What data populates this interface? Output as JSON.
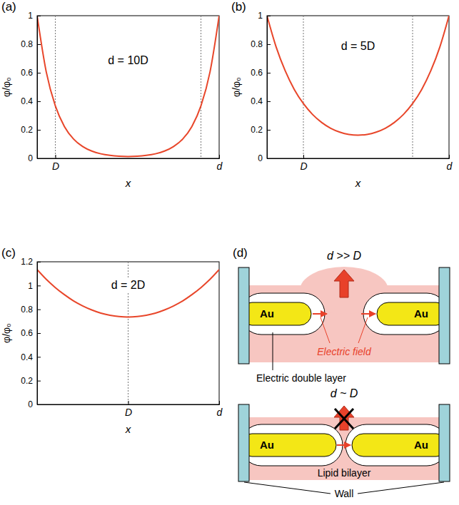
{
  "chart_data": [
    {
      "type": "line",
      "panel_label": "(a)",
      "annotation": "d = 10D",
      "x_label": "x",
      "y_label": "φ/φ₀",
      "x": [
        0,
        0.5,
        1,
        1.5,
        2,
        2.5,
        3,
        3.5,
        4,
        4.5,
        5,
        5.5,
        6,
        6.5,
        7,
        7.5,
        8,
        8.5,
        9,
        9.5,
        10
      ],
      "series": [
        {
          "color": "#e8462a",
          "values": [
            1,
            0.607,
            0.368,
            0.223,
            0.136,
            0.083,
            0.051,
            0.032,
            0.021,
            0.015,
            0.013,
            0.015,
            0.021,
            0.032,
            0.051,
            0.083,
            0.136,
            0.223,
            0.368,
            0.607,
            1
          ]
        }
      ],
      "xlim": [
        0,
        10
      ],
      "xticks": [
        {
          "value": 1,
          "label": "D"
        },
        {
          "value": 10,
          "label": "d"
        }
      ],
      "ylim": [
        0,
        1
      ],
      "yticks": [
        0,
        0.2,
        0.4,
        0.6,
        0.8,
        1
      ],
      "vlines": [
        1,
        9
      ]
    },
    {
      "type": "line",
      "panel_label": "(b)",
      "annotation": "d = 5D",
      "x_label": "x",
      "y_label": "φ/φ₀",
      "x": [
        0,
        0.25,
        0.5,
        0.75,
        1,
        1.25,
        1.5,
        1.75,
        2,
        2.25,
        2.5,
        2.75,
        3,
        3.25,
        3.5,
        3.75,
        4,
        4.25,
        4.5,
        4.75,
        5
      ],
      "series": [
        {
          "color": "#e8462a",
          "values": [
            1,
            0.782,
            0.614,
            0.483,
            0.384,
            0.308,
            0.252,
            0.211,
            0.184,
            0.168,
            0.163,
            0.168,
            0.184,
            0.211,
            0.252,
            0.308,
            0.384,
            0.483,
            0.614,
            0.782,
            1
          ]
        }
      ],
      "xlim": [
        0,
        5
      ],
      "xticks": [
        {
          "value": 1,
          "label": "D"
        },
        {
          "value": 5,
          "label": "d"
        }
      ],
      "ylim": [
        0,
        1
      ],
      "yticks": [
        0,
        0.2,
        0.4,
        0.6,
        0.8,
        1
      ],
      "vlines": [
        1,
        4
      ]
    },
    {
      "type": "line",
      "panel_label": "(c)",
      "annotation": "d = 2D",
      "x_label": "x",
      "y_label": "φ/φ₀",
      "x": [
        0,
        0.1,
        0.2,
        0.3,
        0.4,
        0.5,
        0.6,
        0.7,
        0.8,
        0.9,
        1,
        1.1,
        1.2,
        1.3,
        1.4,
        1.5,
        1.6,
        1.7,
        1.8,
        1.9,
        2
      ],
      "series": [
        {
          "color": "#e8462a",
          "values": [
            1.134,
            1.053,
            0.983,
            0.923,
            0.871,
            0.829,
            0.795,
            0.768,
            0.75,
            0.739,
            0.735,
            0.739,
            0.75,
            0.768,
            0.795,
            0.829,
            0.871,
            0.923,
            0.983,
            1.053,
            1.134
          ]
        }
      ],
      "xlim": [
        0,
        2
      ],
      "xticks": [
        {
          "value": 1,
          "label": "D"
        },
        {
          "value": 2,
          "label": "d"
        }
      ],
      "ylim": [
        0,
        1.2
      ],
      "yticks": [
        0,
        0.2,
        0.4,
        0.6,
        0.8,
        1,
        1.2
      ],
      "vlines": [
        1
      ]
    }
  ],
  "diagram": {
    "panel_label": "(d)",
    "top": {
      "condition": "d >> D",
      "electrode_labels": [
        "Au",
        "Au"
      ],
      "field_label": "Electric field",
      "layer_label": "Electric double layer"
    },
    "bottom": {
      "condition": "d ~ D",
      "electrode_labels": [
        "Au",
        "Au"
      ],
      "medium_label": "Lipid bilayer",
      "wall_label": "Wall"
    }
  }
}
